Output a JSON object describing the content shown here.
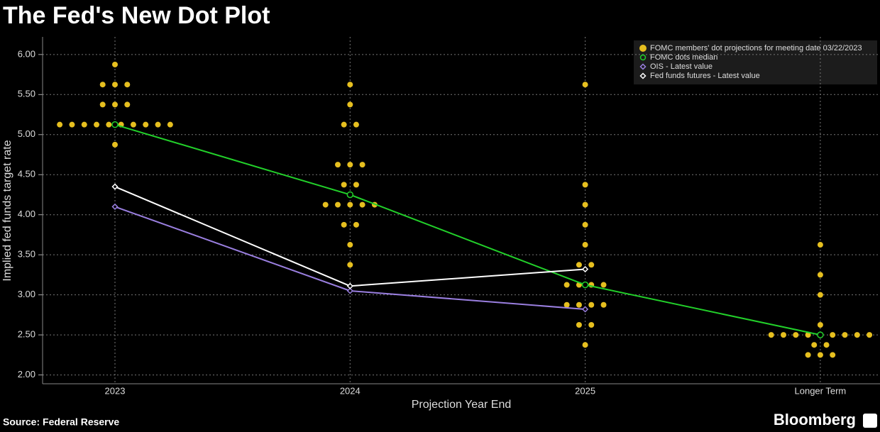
{
  "chart_data": {
    "type": "dotplot",
    "title": "The Fed's New Dot Plot",
    "x_label": "Projection Year End",
    "y_label": "Implied fed funds target rate",
    "source": "Source: Federal Reserve",
    "brand": "Bloomberg",
    "categories": [
      "2023",
      "2024",
      "2025",
      "Longer Term"
    ],
    "ylim": [
      1.89,
      6.22
    ],
    "yticks": [
      {
        "value": 2,
        "label": "2.00"
      },
      {
        "value": 2.5,
        "label": "2.50"
      },
      {
        "value": 3,
        "label": "3.00"
      },
      {
        "value": 3.5,
        "label": "3.50"
      },
      {
        "value": 4,
        "label": "4.00"
      },
      {
        "value": 4.5,
        "label": "4.50"
      },
      {
        "value": 5,
        "label": "5.00"
      },
      {
        "value": 5.5,
        "label": "5.50"
      },
      {
        "value": 6,
        "label": "6.00"
      }
    ],
    "grid": true,
    "legend": "top-right",
    "series": [
      {
        "name": "FOMC members' dot projections for meeting date 03/22/2023",
        "color": "#e6bf1f",
        "marker": "dot",
        "values": [
          [
            5.875,
            5.625,
            5.625,
            5.625,
            5.375,
            5.375,
            5.375,
            5.125,
            5.125,
            5.125,
            5.125,
            5.125,
            5.125,
            5.125,
            5.125,
            5.125,
            5.125,
            4.875
          ],
          [
            5.625,
            5.375,
            5.125,
            5.125,
            4.625,
            4.625,
            4.625,
            4.375,
            4.375,
            4.125,
            4.125,
            4.125,
            4.125,
            4.125,
            3.875,
            3.875,
            3.625,
            3.375
          ],
          [
            5.625,
            4.375,
            4.125,
            3.875,
            3.625,
            3.375,
            3.375,
            3.125,
            3.125,
            3.125,
            3.125,
            2.875,
            2.875,
            2.875,
            2.875,
            2.625,
            2.625,
            2.375
          ],
          [
            3.625,
            3.25,
            3.0,
            2.625,
            2.5,
            2.5,
            2.5,
            2.5,
            2.5,
            2.5,
            2.5,
            2.5,
            2.5,
            2.375,
            2.375,
            2.25,
            2.25,
            2.25
          ]
        ]
      },
      {
        "name": "FOMC dots median",
        "color": "#22d02a",
        "marker": "circle",
        "values": [
          5.125,
          4.25,
          3.125,
          2.5
        ]
      },
      {
        "name": "OIS - Latest value",
        "color": "#9a7fe0",
        "marker": "diamond",
        "values": [
          4.1,
          3.05,
          2.82,
          null
        ]
      },
      {
        "name": "Fed funds futures - Latest value",
        "color": "#ffffff",
        "marker": "diamond",
        "values": [
          4.35,
          3.11,
          3.32,
          null
        ]
      }
    ]
  }
}
